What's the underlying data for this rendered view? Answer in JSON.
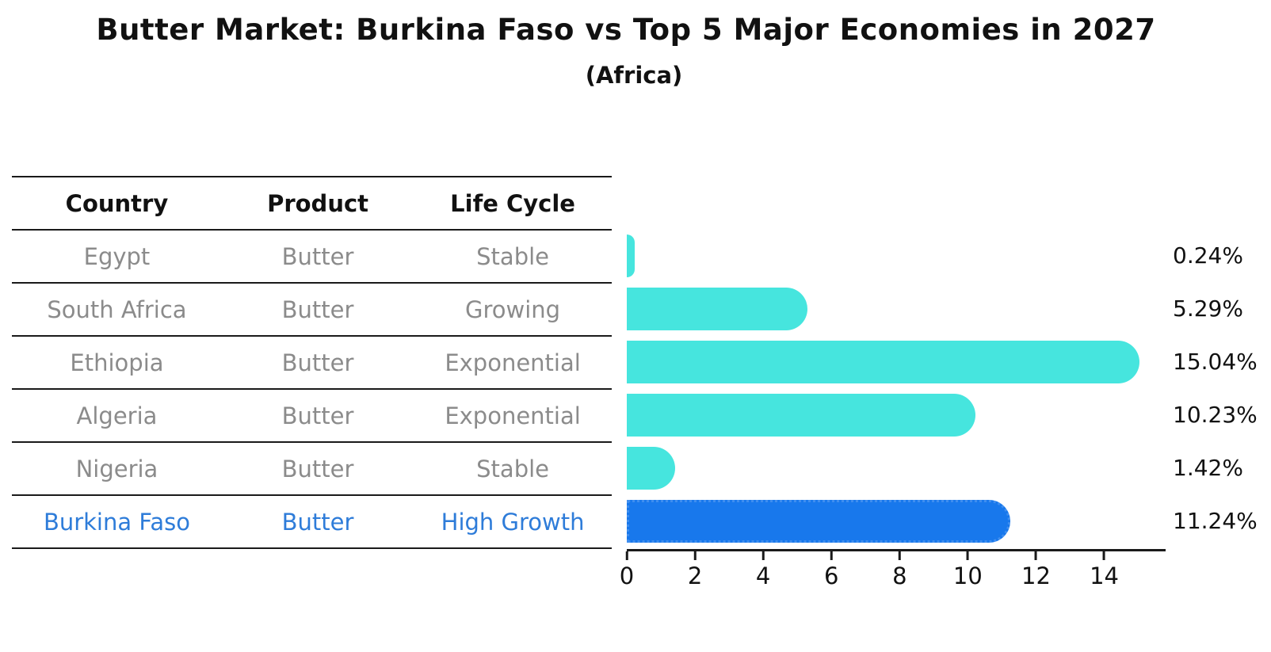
{
  "chart_data": {
    "type": "bar",
    "orientation": "horizontal",
    "title": "Butter Market: Burkina Faso vs Top 5 Major Economies in 2027",
    "subtitle": "(Africa)",
    "categories": [
      "Egypt",
      "South Africa",
      "Ethiopia",
      "Algeria",
      "Nigeria",
      "Burkina Faso"
    ],
    "values": [
      0.24,
      5.29,
      15.04,
      10.23,
      1.42,
      11.24
    ],
    "value_labels": [
      "0.24%",
      "5.29%",
      "15.04%",
      "10.23%",
      "1.42%",
      "11.24%"
    ],
    "x_ticks": [
      0,
      2,
      4,
      6,
      8,
      10,
      12,
      14
    ],
    "xlim": [
      0,
      15.8
    ],
    "grid": false,
    "legend": "none",
    "bar_color": "#46e5de",
    "highlight_index": 5,
    "highlight_color": "#1878ec",
    "highlight_border_color": "#3f8eef"
  },
  "table": {
    "headers": [
      "Country",
      "Product",
      "Life Cycle"
    ],
    "rows": [
      {
        "country": "Egypt",
        "product": "Butter",
        "life_cycle": "Stable",
        "highlight": false
      },
      {
        "country": "South Africa",
        "product": "Butter",
        "life_cycle": "Growing",
        "highlight": false
      },
      {
        "country": "Ethiopia",
        "product": "Butter",
        "life_cycle": "Exponential",
        "highlight": false
      },
      {
        "country": "Algeria",
        "product": "Butter",
        "life_cycle": "Exponential",
        "highlight": false
      },
      {
        "country": "Nigeria",
        "product": "Butter",
        "life_cycle": "Stable",
        "highlight": false
      },
      {
        "country": "Burkina Faso",
        "product": "Butter",
        "life_cycle": "High Growth",
        "highlight": true
      }
    ],
    "text_color": "#8b8b8b",
    "highlight_text_color": "#2e7cd9"
  }
}
